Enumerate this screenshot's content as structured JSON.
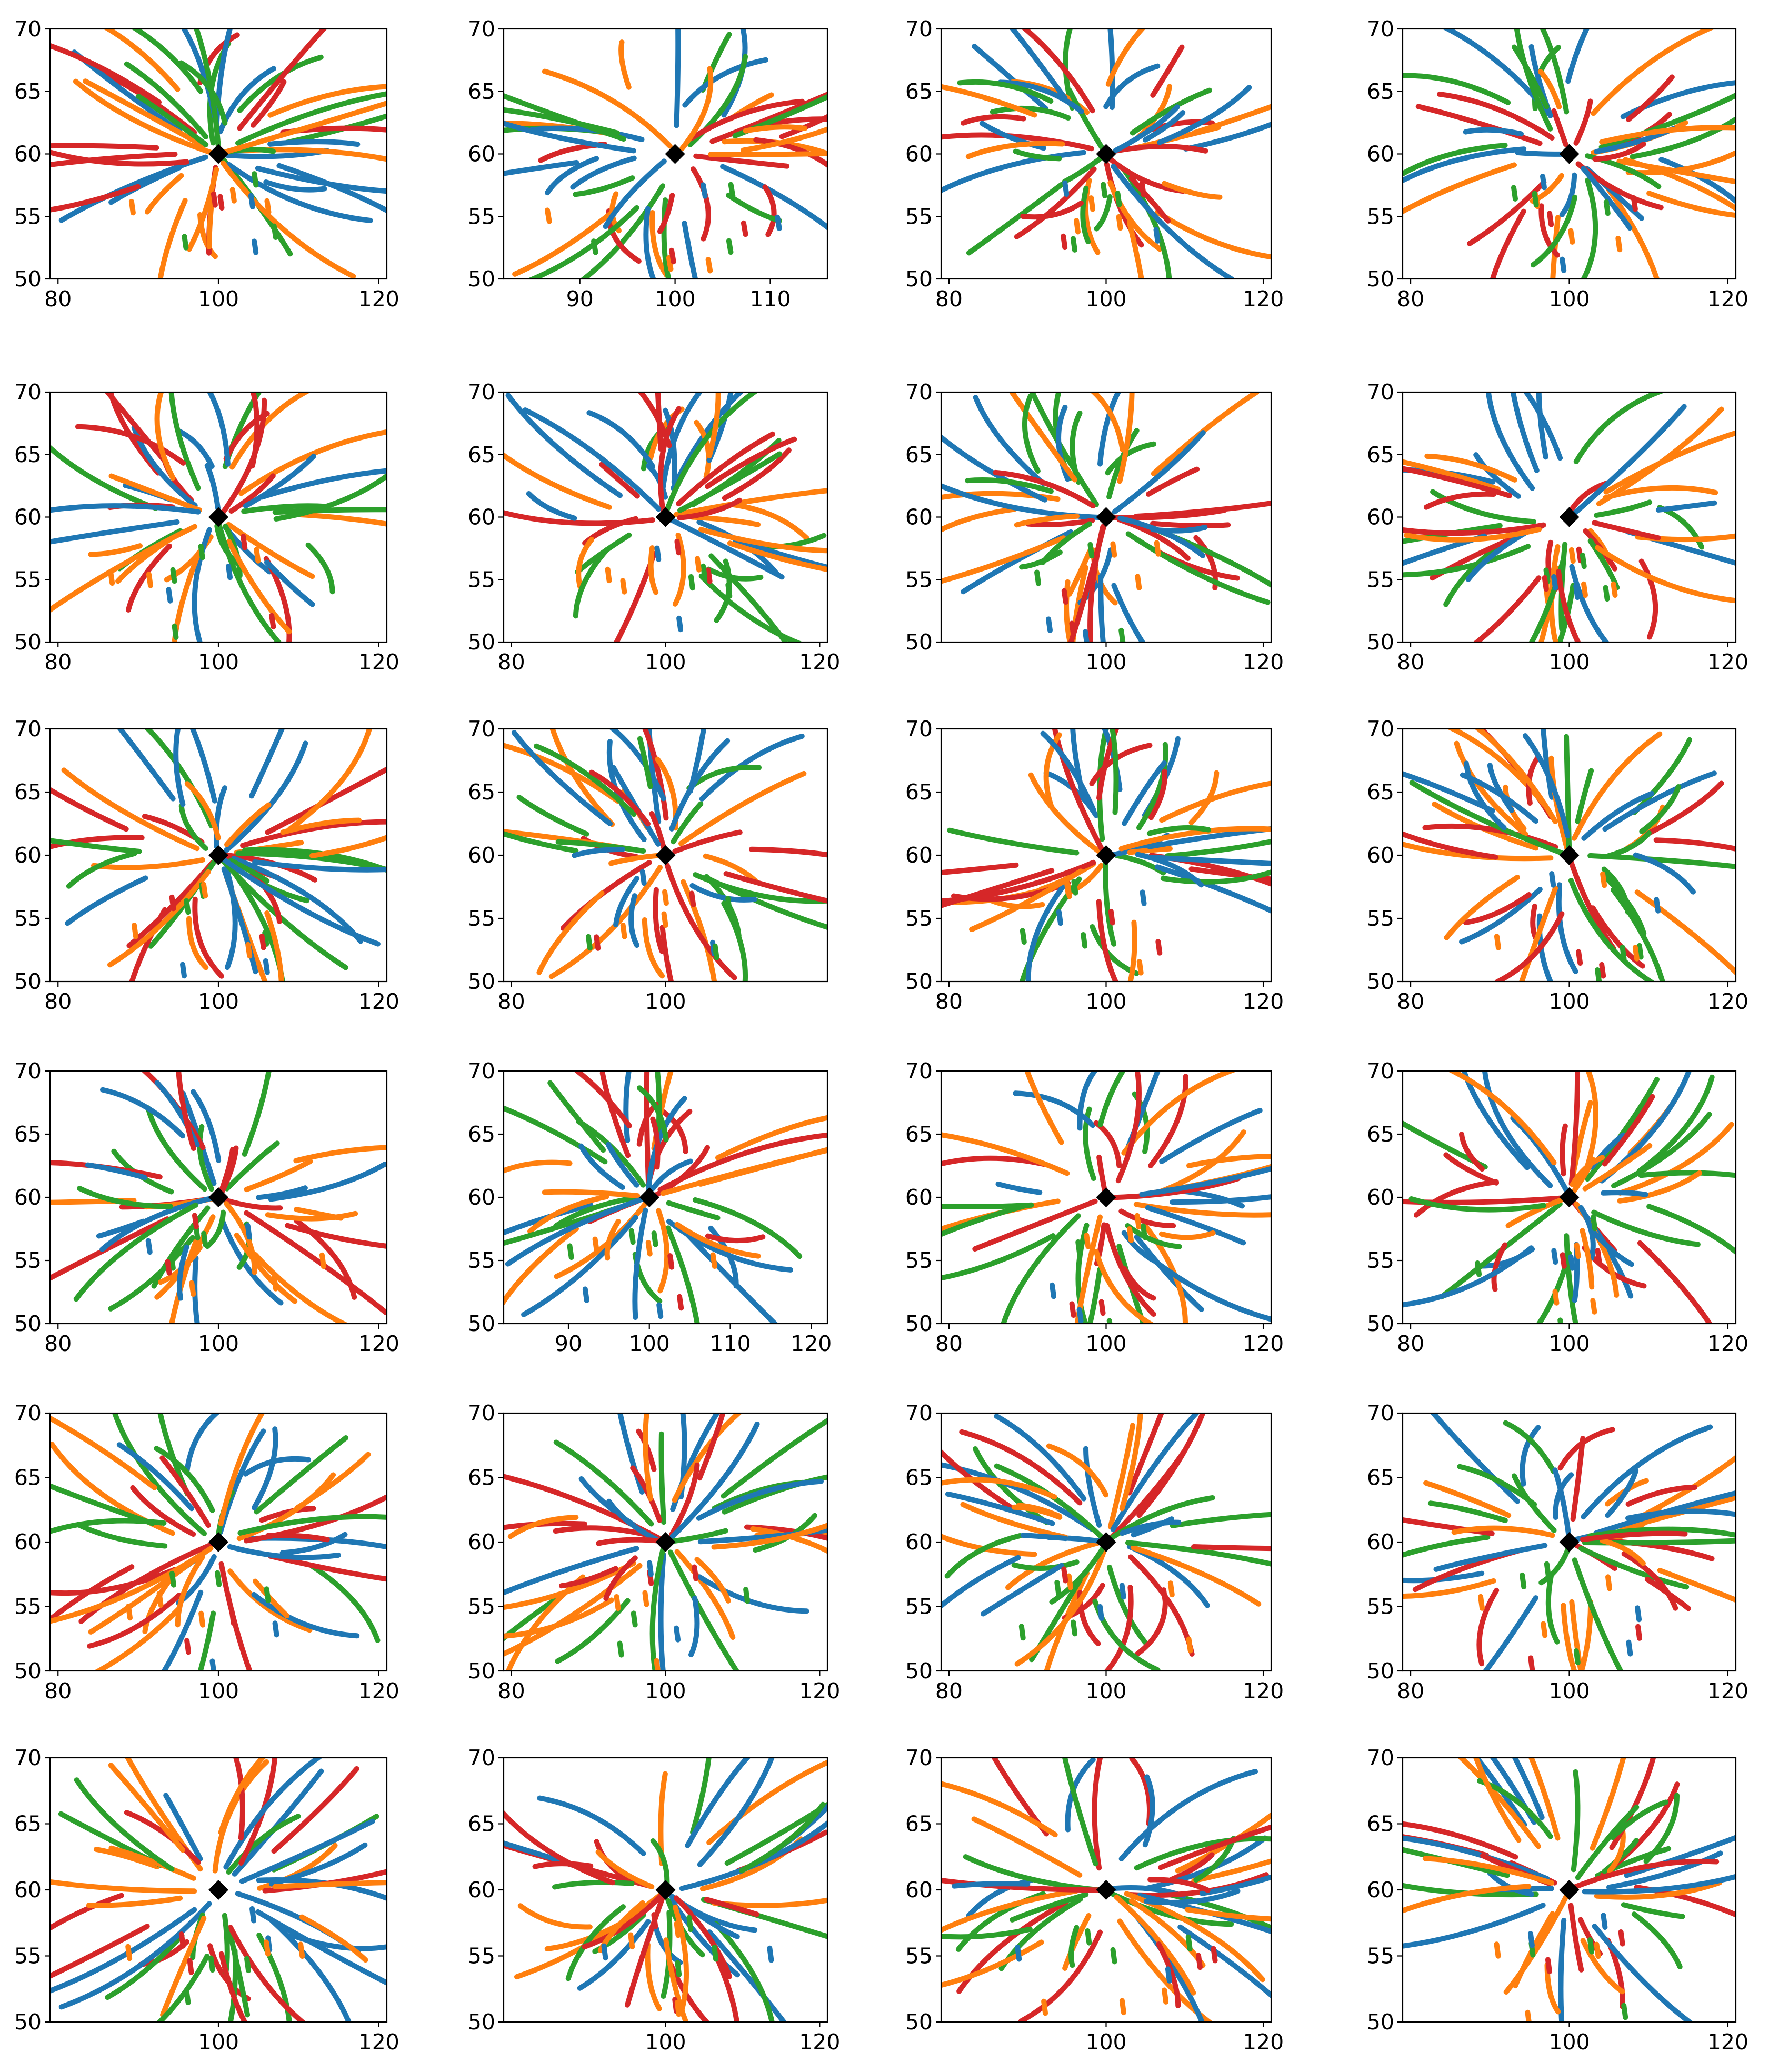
{
  "colors": {
    "blue": "#1f77b4",
    "orange": "#ff7f0e",
    "green": "#2ca02c",
    "red": "#d62728",
    "marker": "#000000"
  },
  "figure_layout": {
    "rows": 6,
    "cols": 4
  },
  "chart_data": [
    {
      "panel": "r1c1",
      "type": "line",
      "xlim": [
        79,
        121
      ],
      "ylim": [
        50,
        70
      ],
      "x_ticks": [
        "80",
        "100",
        "120"
      ],
      "y_ticks": [
        "50",
        "55",
        "60",
        "65",
        "70"
      ],
      "center": [
        100,
        60
      ],
      "seed": 11
    },
    {
      "panel": "r1c2",
      "type": "line",
      "xlim": [
        82,
        116
      ],
      "ylim": [
        50,
        70
      ],
      "x_ticks": [
        "90",
        "100",
        "110"
      ],
      "y_ticks": [
        "50",
        "55",
        "60",
        "65",
        "70"
      ],
      "center": [
        100,
        60
      ],
      "seed": 23
    },
    {
      "panel": "r1c3",
      "type": "line",
      "xlim": [
        79,
        121
      ],
      "ylim": [
        50,
        70
      ],
      "x_ticks": [
        "80",
        "100",
        "120"
      ],
      "y_ticks": [
        "50",
        "55",
        "60",
        "65",
        "70"
      ],
      "center": [
        100,
        60
      ],
      "seed": 37
    },
    {
      "panel": "r1c4",
      "type": "line",
      "xlim": [
        79,
        121
      ],
      "ylim": [
        50,
        70
      ],
      "x_ticks": [
        "80",
        "100",
        "120"
      ],
      "y_ticks": [
        "50",
        "55",
        "60",
        "65",
        "70"
      ],
      "center": [
        100,
        60
      ],
      "seed": 41
    },
    {
      "panel": "r2c1",
      "type": "line",
      "xlim": [
        79,
        121
      ],
      "ylim": [
        50,
        70
      ],
      "x_ticks": [
        "80",
        "100",
        "120"
      ],
      "y_ticks": [
        "50",
        "55",
        "60",
        "65",
        "70"
      ],
      "center": [
        100,
        60
      ],
      "seed": 53
    },
    {
      "panel": "r2c2",
      "type": "line",
      "xlim": [
        79,
        121
      ],
      "ylim": [
        50,
        70
      ],
      "x_ticks": [
        "80",
        "100",
        "120"
      ],
      "y_ticks": [
        "50",
        "55",
        "60",
        "65",
        "70"
      ],
      "center": [
        100,
        60
      ],
      "seed": 67
    },
    {
      "panel": "r2c3",
      "type": "line",
      "xlim": [
        79,
        121
      ],
      "ylim": [
        50,
        70
      ],
      "x_ticks": [
        "100",
        "120"
      ],
      "y_ticks": [
        "50",
        "55",
        "60",
        "65",
        "70"
      ],
      "center": [
        100,
        60
      ],
      "seed": 71
    },
    {
      "panel": "r2c4",
      "type": "line",
      "xlim": [
        79,
        121
      ],
      "ylim": [
        50,
        70
      ],
      "x_ticks": [
        "80",
        "100",
        "120"
      ],
      "y_ticks": [
        "50",
        "55",
        "60",
        "65",
        "70"
      ],
      "center": [
        100,
        60
      ],
      "seed": 83
    },
    {
      "panel": "r3c1",
      "type": "line",
      "xlim": [
        79,
        121
      ],
      "ylim": [
        50,
        70
      ],
      "x_ticks": [
        "80",
        "100",
        "120"
      ],
      "y_ticks": [
        "50",
        "55",
        "60",
        "65",
        "70"
      ],
      "center": [
        100,
        60
      ],
      "seed": 97
    },
    {
      "panel": "r3c2",
      "type": "line",
      "xlim": [
        79,
        121
      ],
      "ylim": [
        50,
        70
      ],
      "x_ticks": [
        "80",
        "100"
      ],
      "y_ticks": [
        "50",
        "55",
        "60",
        "65",
        "70"
      ],
      "center": [
        100,
        60
      ],
      "seed": 101
    },
    {
      "panel": "r3c3",
      "type": "line",
      "xlim": [
        79,
        121
      ],
      "ylim": [
        50,
        70
      ],
      "x_ticks": [
        "80",
        "100",
        "120"
      ],
      "y_ticks": [
        "50",
        "55",
        "60",
        "65",
        "70"
      ],
      "center": [
        100,
        60
      ],
      "seed": 113
    },
    {
      "panel": "r3c4",
      "type": "line",
      "xlim": [
        79,
        121
      ],
      "ylim": [
        50,
        70
      ],
      "x_ticks": [
        "80",
        "100",
        "120"
      ],
      "y_ticks": [
        "50",
        "55",
        "60",
        "65",
        "70"
      ],
      "center": [
        100,
        60
      ],
      "seed": 127
    },
    {
      "panel": "r4c1",
      "type": "line",
      "xlim": [
        79,
        121
      ],
      "ylim": [
        50,
        70
      ],
      "x_ticks": [
        "80",
        "100",
        "120"
      ],
      "y_ticks": [
        "50",
        "55",
        "60",
        "65",
        "70"
      ],
      "center": [
        100,
        60
      ],
      "seed": 131
    },
    {
      "panel": "r4c2",
      "type": "line",
      "xlim": [
        82,
        122
      ],
      "ylim": [
        50,
        70
      ],
      "x_ticks": [
        "90",
        "100",
        "110",
        "120"
      ],
      "y_ticks": [
        "50",
        "55",
        "60",
        "65",
        "70"
      ],
      "center": [
        100,
        60
      ],
      "seed": 149
    },
    {
      "panel": "r4c3",
      "type": "line",
      "xlim": [
        79,
        121
      ],
      "ylim": [
        50,
        70
      ],
      "x_ticks": [
        "80",
        "100",
        "120"
      ],
      "y_ticks": [
        "50",
        "55",
        "60",
        "65",
        "70"
      ],
      "center": [
        100,
        60
      ],
      "seed": 151
    },
    {
      "panel": "r4c4",
      "type": "line",
      "xlim": [
        79,
        121
      ],
      "ylim": [
        50,
        70
      ],
      "x_ticks": [
        "80",
        "100",
        "120"
      ],
      "y_ticks": [
        "50",
        "55",
        "60",
        "65",
        "70"
      ],
      "center": [
        100,
        60
      ],
      "seed": 163
    },
    {
      "panel": "r5c1",
      "type": "line",
      "xlim": [
        79,
        121
      ],
      "ylim": [
        50,
        70
      ],
      "x_ticks": [
        "80",
        "100",
        "120"
      ],
      "y_ticks": [
        "50",
        "55",
        "60",
        "65",
        "70"
      ],
      "center": [
        100,
        60
      ],
      "seed": 173
    },
    {
      "panel": "r5c2",
      "type": "line",
      "xlim": [
        79,
        121
      ],
      "ylim": [
        50,
        70
      ],
      "x_ticks": [
        "80",
        "100",
        "120"
      ],
      "y_ticks": [
        "50",
        "55",
        "60",
        "65",
        "70"
      ],
      "center": [
        100,
        60
      ],
      "seed": 181
    },
    {
      "panel": "r5c3",
      "type": "line",
      "xlim": [
        79,
        121
      ],
      "ylim": [
        50,
        70
      ],
      "x_ticks": [
        "80",
        "100",
        "120"
      ],
      "y_ticks": [
        "50",
        "55",
        "60",
        "65",
        "70"
      ],
      "center": [
        100,
        60
      ],
      "seed": 191
    },
    {
      "panel": "r5c4",
      "type": "line",
      "xlim": [
        79,
        121
      ],
      "ylim": [
        50,
        70
      ],
      "x_ticks": [
        "80",
        "100",
        "120"
      ],
      "y_ticks": [
        "50",
        "55",
        "60",
        "65",
        "70"
      ],
      "center": [
        100,
        60
      ],
      "seed": 199
    },
    {
      "panel": "r6c1",
      "type": "line",
      "xlim": [
        79,
        121
      ],
      "ylim": [
        50,
        70
      ],
      "x_ticks": [
        "100",
        "120"
      ],
      "y_ticks": [
        "50",
        "55",
        "60",
        "65",
        "70"
      ],
      "center": [
        100,
        60
      ],
      "seed": 211
    },
    {
      "panel": "r6c2",
      "type": "line",
      "xlim": [
        79,
        121
      ],
      "ylim": [
        50,
        70
      ],
      "x_ticks": [
        "100",
        "120"
      ],
      "y_ticks": [
        "50",
        "55",
        "60",
        "65",
        "70"
      ],
      "center": [
        100,
        60
      ],
      "seed": 223
    },
    {
      "panel": "r6c3",
      "type": "line",
      "xlim": [
        79,
        121
      ],
      "ylim": [
        50,
        70
      ],
      "x_ticks": [
        "100",
        "120"
      ],
      "y_ticks": [
        "50",
        "55",
        "60",
        "65",
        "70"
      ],
      "center": [
        100,
        60
      ],
      "seed": 227
    },
    {
      "panel": "r6c4",
      "type": "line",
      "xlim": [
        79,
        121
      ],
      "ylim": [
        50,
        70
      ],
      "x_ticks": [
        "100",
        "120"
      ],
      "y_ticks": [
        "50",
        "55",
        "60",
        "65",
        "70"
      ],
      "center": [
        100,
        60
      ],
      "seed": 239
    }
  ]
}
